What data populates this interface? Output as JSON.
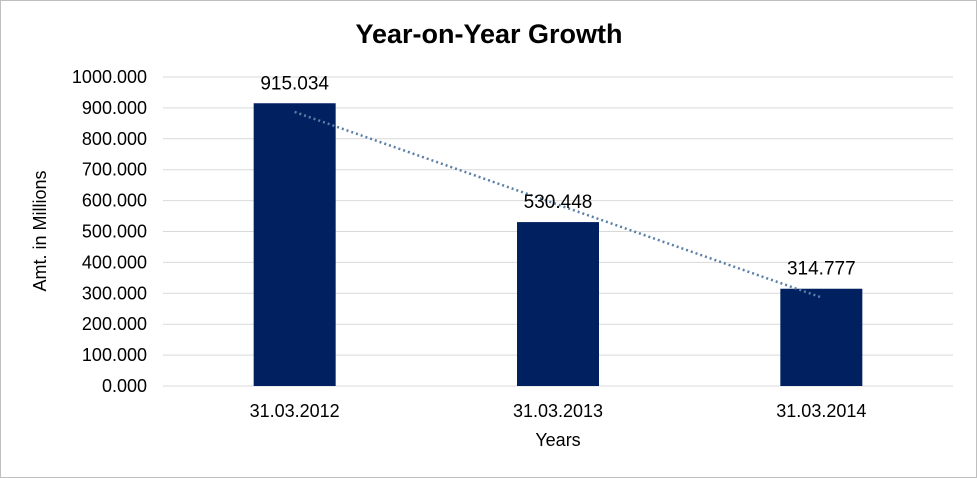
{
  "chart_data": {
    "type": "bar",
    "title": "Year-on-Year Growth",
    "xlabel": "Years",
    "ylabel": "Amt. in Millions",
    "categories": [
      "31.03.2012",
      "31.03.2013",
      "31.03.2014"
    ],
    "values": [
      915.034,
      530.448,
      314.777
    ],
    "data_labels": [
      "915.034",
      "530.448",
      "314.777"
    ],
    "ylim": [
      0,
      1000
    ],
    "yticks": [
      0,
      100,
      200,
      300,
      400,
      500,
      600,
      700,
      800,
      900,
      1000
    ],
    "ytick_labels": [
      "0.000",
      "100.000",
      "200.000",
      "300.000",
      "400.000",
      "500.000",
      "600.000",
      "700.000",
      "800.000",
      "900.000",
      "1000.000"
    ],
    "grid": true,
    "legend": "none",
    "trendline": {
      "type": "linear",
      "style": "dotted"
    },
    "colors": {
      "bar": "#002060",
      "trendline": "#5b7fa6",
      "grid": "#d9d9d9"
    }
  }
}
